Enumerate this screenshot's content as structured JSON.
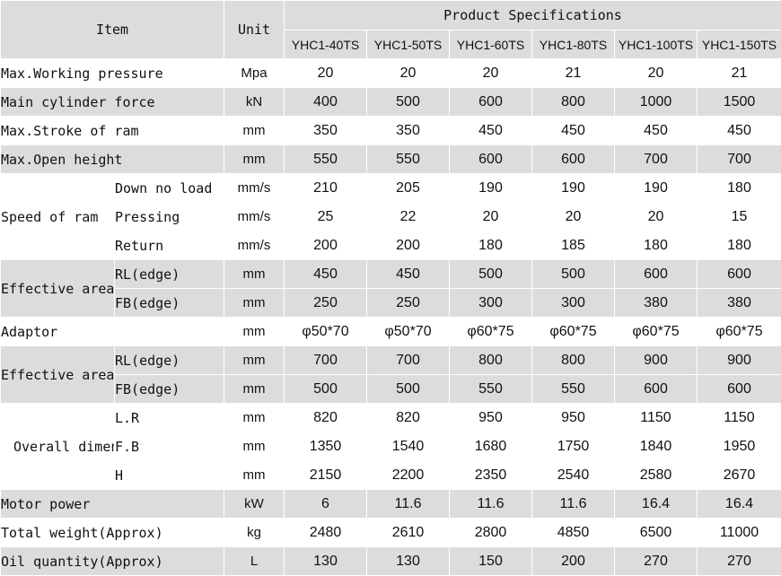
{
  "header": {
    "item": "Item",
    "unit": "Unit",
    "spec_title": "Product Specifications",
    "models": [
      "YHC1-40TS",
      "YHC1-50TS",
      "YHC1-60TS",
      "YHC1-80TS",
      "YHC1-100TS",
      "YHC1-150TS"
    ]
  },
  "rows": {
    "max_working_pressure": {
      "label": "Max.Working pressure",
      "unit": "Mpa",
      "values": [
        "20",
        "20",
        "20",
        "21",
        "20",
        "21"
      ]
    },
    "main_cylinder_force": {
      "label": "Main cylinder force",
      "unit": "kN",
      "values": [
        "400",
        "500",
        "600",
        "800",
        "1000",
        "1500"
      ]
    },
    "max_stroke": {
      "label": "Max.Stroke of ram",
      "unit": "mm",
      "values": [
        "350",
        "350",
        "450",
        "450",
        "450",
        "450"
      ]
    },
    "max_open_height": {
      "label": "Max.Open height",
      "unit": "mm",
      "values": [
        "550",
        "550",
        "600",
        "600",
        "700",
        "700"
      ]
    },
    "speed": {
      "label": "Speed of ram",
      "down": {
        "label": "Down no load",
        "unit": "mm/s",
        "values": [
          "210",
          "205",
          "190",
          "190",
          "190",
          "180"
        ]
      },
      "pressing": {
        "label": "Pressing",
        "unit": "mm/s",
        "values": [
          "25",
          "22",
          "20",
          "20",
          "20",
          "15"
        ]
      },
      "return": {
        "label": "Return",
        "unit": "mm/s",
        "values": [
          "200",
          "200",
          "180",
          "185",
          "180",
          "180"
        ]
      }
    },
    "effective_area_1": {
      "label": "Effective area of working table",
      "rl": {
        "label": "RL(edge)",
        "unit": "mm",
        "values": [
          "450",
          "450",
          "500",
          "500",
          "600",
          "600"
        ]
      },
      "fb": {
        "label": "FB(edge)",
        "unit": "mm",
        "values": [
          "250",
          "250",
          "300",
          "300",
          "380",
          "380"
        ]
      }
    },
    "adaptor": {
      "label": "Adaptor",
      "unit": "mm",
      "values": [
        "φ50*70",
        "φ50*70",
        "φ60*75",
        "φ60*75",
        "φ60*75",
        "φ60*75"
      ]
    },
    "effective_area_2": {
      "label": "Effective area of working table",
      "rl": {
        "label": "RL(edge)",
        "unit": "mm",
        "values": [
          "700",
          "700",
          "800",
          "800",
          "900",
          "900"
        ]
      },
      "fb": {
        "label": "FB(edge)",
        "unit": "mm",
        "values": [
          "500",
          "500",
          "550",
          "550",
          "600",
          "600"
        ]
      }
    },
    "overall_dimension": {
      "label": "Overall dimension",
      "lr": {
        "label": "L.R",
        "unit": "mm",
        "values": [
          "820",
          "820",
          "950",
          "950",
          "1150",
          "1150"
        ]
      },
      "fb": {
        "label": "F.B",
        "unit": "mm",
        "values": [
          "1350",
          "1540",
          "1680",
          "1750",
          "1840",
          "1950"
        ]
      },
      "h": {
        "label": "H",
        "unit": "mm",
        "values": [
          "2150",
          "2200",
          "2350",
          "2540",
          "2580",
          "2670"
        ]
      }
    },
    "motor_power": {
      "label": "Motor power",
      "unit": "kW",
      "values": [
        "6",
        "11.6",
        "11.6",
        "11.6",
        "16.4",
        "16.4"
      ]
    },
    "total_weight": {
      "label": "Total weight(Approx)",
      "unit": "kg",
      "values": [
        "2480",
        "2610",
        "2800",
        "4850",
        "6500",
        "11000"
      ]
    },
    "oil_quantity": {
      "label": "Oil quantity(Approx)",
      "unit": "L",
      "values": [
        "130",
        "130",
        "150",
        "200",
        "270",
        "270"
      ]
    }
  }
}
